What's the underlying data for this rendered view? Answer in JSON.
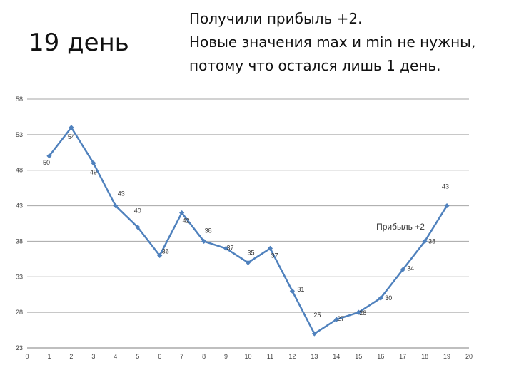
{
  "header": {
    "day_title": "19 день",
    "note_lines": [
      "Получили прибыль +2.",
      "Новые значения max и min не нужны,",
      "потому что  остался лишь 1 день."
    ]
  },
  "chart_data": {
    "type": "line",
    "title": "",
    "xlabel": "",
    "ylabel": "",
    "x_ticks": [
      0,
      1,
      2,
      3,
      4,
      5,
      6,
      7,
      8,
      9,
      10,
      11,
      12,
      13,
      14,
      15,
      16,
      17,
      18,
      19,
      20
    ],
    "y_ticks": [
      23,
      28,
      33,
      38,
      43,
      48,
      53,
      58
    ],
    "xlim": [
      0,
      20
    ],
    "ylim": [
      23,
      58
    ],
    "grid": "horizontal",
    "line_color": "#4f81bd",
    "series": [
      {
        "x": [
          1,
          2,
          3,
          4,
          5,
          6,
          7,
          8,
          9,
          10,
          11,
          12,
          13,
          14,
          15,
          16,
          17,
          18,
          19
        ],
        "values": [
          50,
          54,
          49,
          43,
          40,
          36,
          42,
          38,
          37,
          35,
          37,
          31,
          25,
          27,
          28,
          30,
          34,
          38,
          43
        ]
      }
    ],
    "data_labels": [
      {
        "text": "50"
      },
      {
        "text": "54"
      },
      {
        "text": "49"
      },
      {
        "text": "43"
      },
      {
        "text": "40"
      },
      {
        "text": "36"
      },
      {
        "text": "42"
      },
      {
        "text": "38"
      },
      {
        "text": "37"
      },
      {
        "text": "35"
      },
      {
        "text": "37"
      },
      {
        "text": "31"
      },
      {
        "text": "25"
      },
      {
        "text": "27"
      },
      {
        "text": "28"
      },
      {
        "text": "30"
      },
      {
        "text": "34"
      },
      {
        "text": "38"
      },
      {
        "text": "43"
      }
    ],
    "annotation": "Прибыль +2"
  }
}
